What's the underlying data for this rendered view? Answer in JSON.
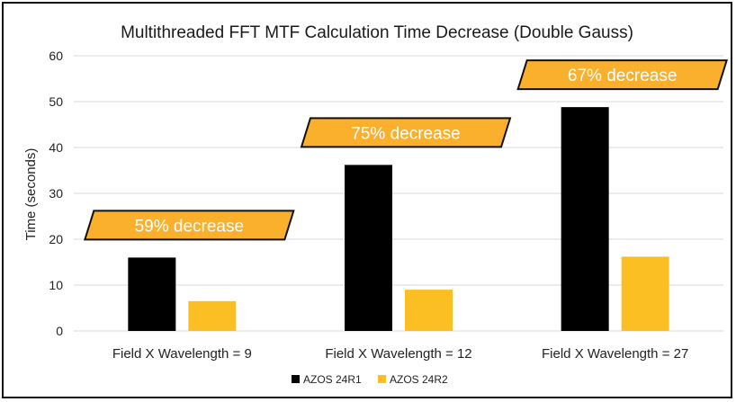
{
  "chart_data": {
    "type": "bar",
    "title": "Multithreaded FFT MTF Calculation Time Decrease (Double Gauss)",
    "ylabel": "Time (seconds)",
    "xlabel": "",
    "ylim": [
      0,
      60
    ],
    "yticks": [
      0,
      10,
      20,
      30,
      40,
      50,
      60
    ],
    "grid": true,
    "legend_position": "bottom",
    "categories": [
      "Field X Wavelength = 9",
      "Field X Wavelength = 12",
      "Field X Wavelength = 27"
    ],
    "series": [
      {
        "name": "AZOS 24R1",
        "color": "#000000",
        "values": [
          16,
          36.2,
          48.8
        ]
      },
      {
        "name": "AZOS 24R2",
        "color": "#fbbf24",
        "values": [
          6.5,
          9,
          16.2
        ]
      }
    ],
    "annotations": [
      "59% decrease",
      "75% decrease",
      "67% decrease"
    ],
    "annotation_color": "#fbb02d"
  }
}
